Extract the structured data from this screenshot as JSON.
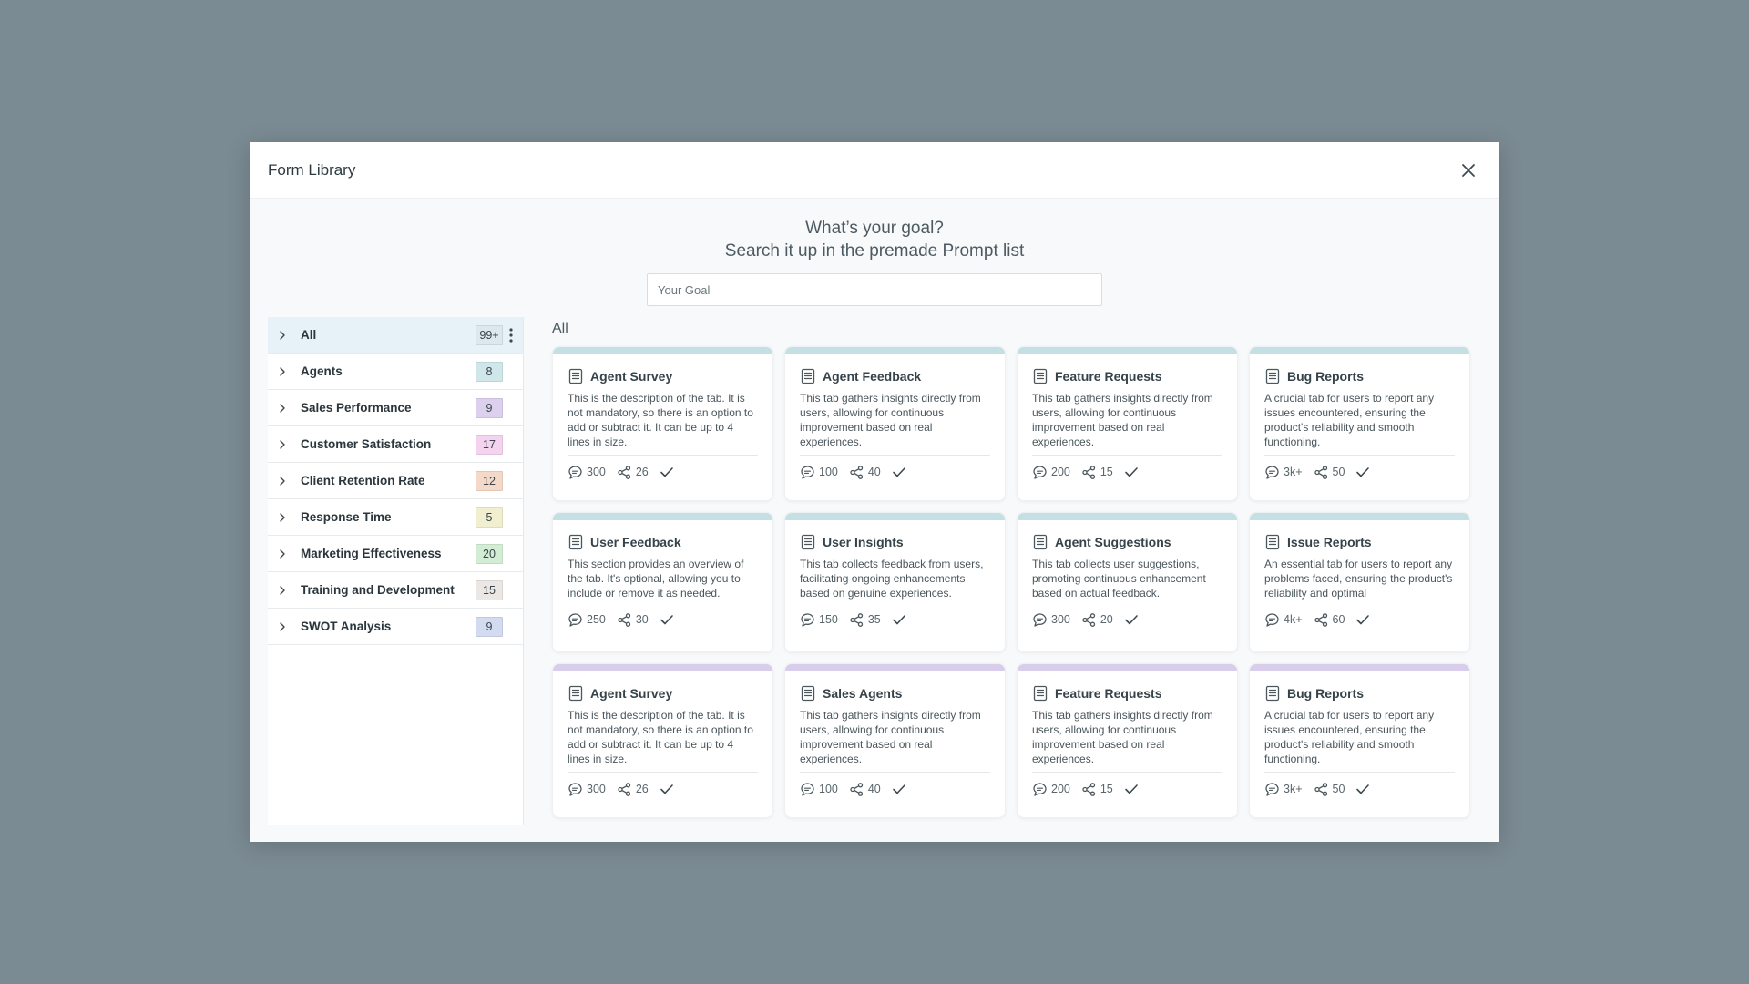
{
  "modal": {
    "title": "Form Library"
  },
  "goal": {
    "heading": "What’s your goal?",
    "subheading": "Search it up in the premade Prompt list",
    "placeholder": "Your Goal"
  },
  "sidebar": {
    "items": [
      {
        "label": "All",
        "count": "99+",
        "color": "#dde8ee"
      },
      {
        "label": "Agents",
        "count": "8",
        "color": "#cfe6ea"
      },
      {
        "label": "Sales Performance",
        "count": "9",
        "color": "#ddd0ee"
      },
      {
        "label": "Customer Satisfaction",
        "count": "17",
        "color": "#f3d3ee"
      },
      {
        "label": "Client Retention Rate",
        "count": "12",
        "color": "#f4d9c9"
      },
      {
        "label": "Response Time",
        "count": "5",
        "color": "#f1efcf"
      },
      {
        "label": "Marketing Effectiveness",
        "count": "20",
        "color": "#d3ecd4"
      },
      {
        "label": "Training and Development",
        "count": "15",
        "color": "#ebe7e4"
      },
      {
        "label": "SWOT Analysis",
        "count": "9",
        "color": "#d3dbf1"
      }
    ]
  },
  "main": {
    "section_title": "All",
    "accent_colors": {
      "teal": "#c4e0e4",
      "purple": "#d8cdeb"
    },
    "cards": [
      {
        "title": "Agent Survey",
        "desc": "This is the description of the tab. It is not mandatory, so there is an option to add or subtract it. It can be up to 4 lines in size.",
        "comments": "300",
        "shares": "26"
      },
      {
        "title": "Agent Feedback",
        "desc": "This tab gathers insights directly from users, allowing for continuous improvement based on real experiences.",
        "comments": "100",
        "shares": "40"
      },
      {
        "title": "Feature Requests",
        "desc": "This tab gathers insights directly from users, allowing for continuous improvement based on real experiences.",
        "comments": "200",
        "shares": "15"
      },
      {
        "title": "Bug Reports",
        "desc": "A crucial tab for users to report any issues encountered, ensuring the product's reliability and smooth functioning.",
        "comments": "3k+",
        "shares": "50"
      },
      {
        "title": "User Feedback",
        "desc": "This section provides an overview of the tab. It's optional, allowing you to include or remove it as needed.",
        "comments": "250",
        "shares": "30"
      },
      {
        "title": "User Insights",
        "desc": "This tab collects feedback from users, facilitating ongoing enhancements based on genuine experiences.",
        "comments": "150",
        "shares": "35"
      },
      {
        "title": "Agent Suggestions",
        "desc": "This tab collects user suggestions, promoting continuous enhancement based on actual feedback.",
        "comments": "300",
        "shares": "20"
      },
      {
        "title": "Issue Reports",
        "desc": "An essential tab for users to report any problems faced, ensuring the product's reliability and optimal",
        "comments": "4k+",
        "shares": "60"
      },
      {
        "title": "Agent Survey",
        "desc": "This is the description of the tab. It is not mandatory, so there is an option to add or subtract it. It can be up to 4 lines in size.",
        "comments": "300",
        "shares": "26"
      },
      {
        "title": "Sales Agents",
        "desc": "This tab gathers insights directly from users, allowing for continuous improvement based on real experiences.",
        "comments": "100",
        "shares": "40"
      },
      {
        "title": "Feature Requests",
        "desc": "This tab gathers insights directly from users, allowing for continuous improvement based on real experiences.",
        "comments": "200",
        "shares": "15"
      },
      {
        "title": "Bug Reports",
        "desc": "A crucial tab for users to report any issues encountered, ensuring the product's reliability and smooth functioning.",
        "comments": "3k+",
        "shares": "50"
      }
    ]
  }
}
